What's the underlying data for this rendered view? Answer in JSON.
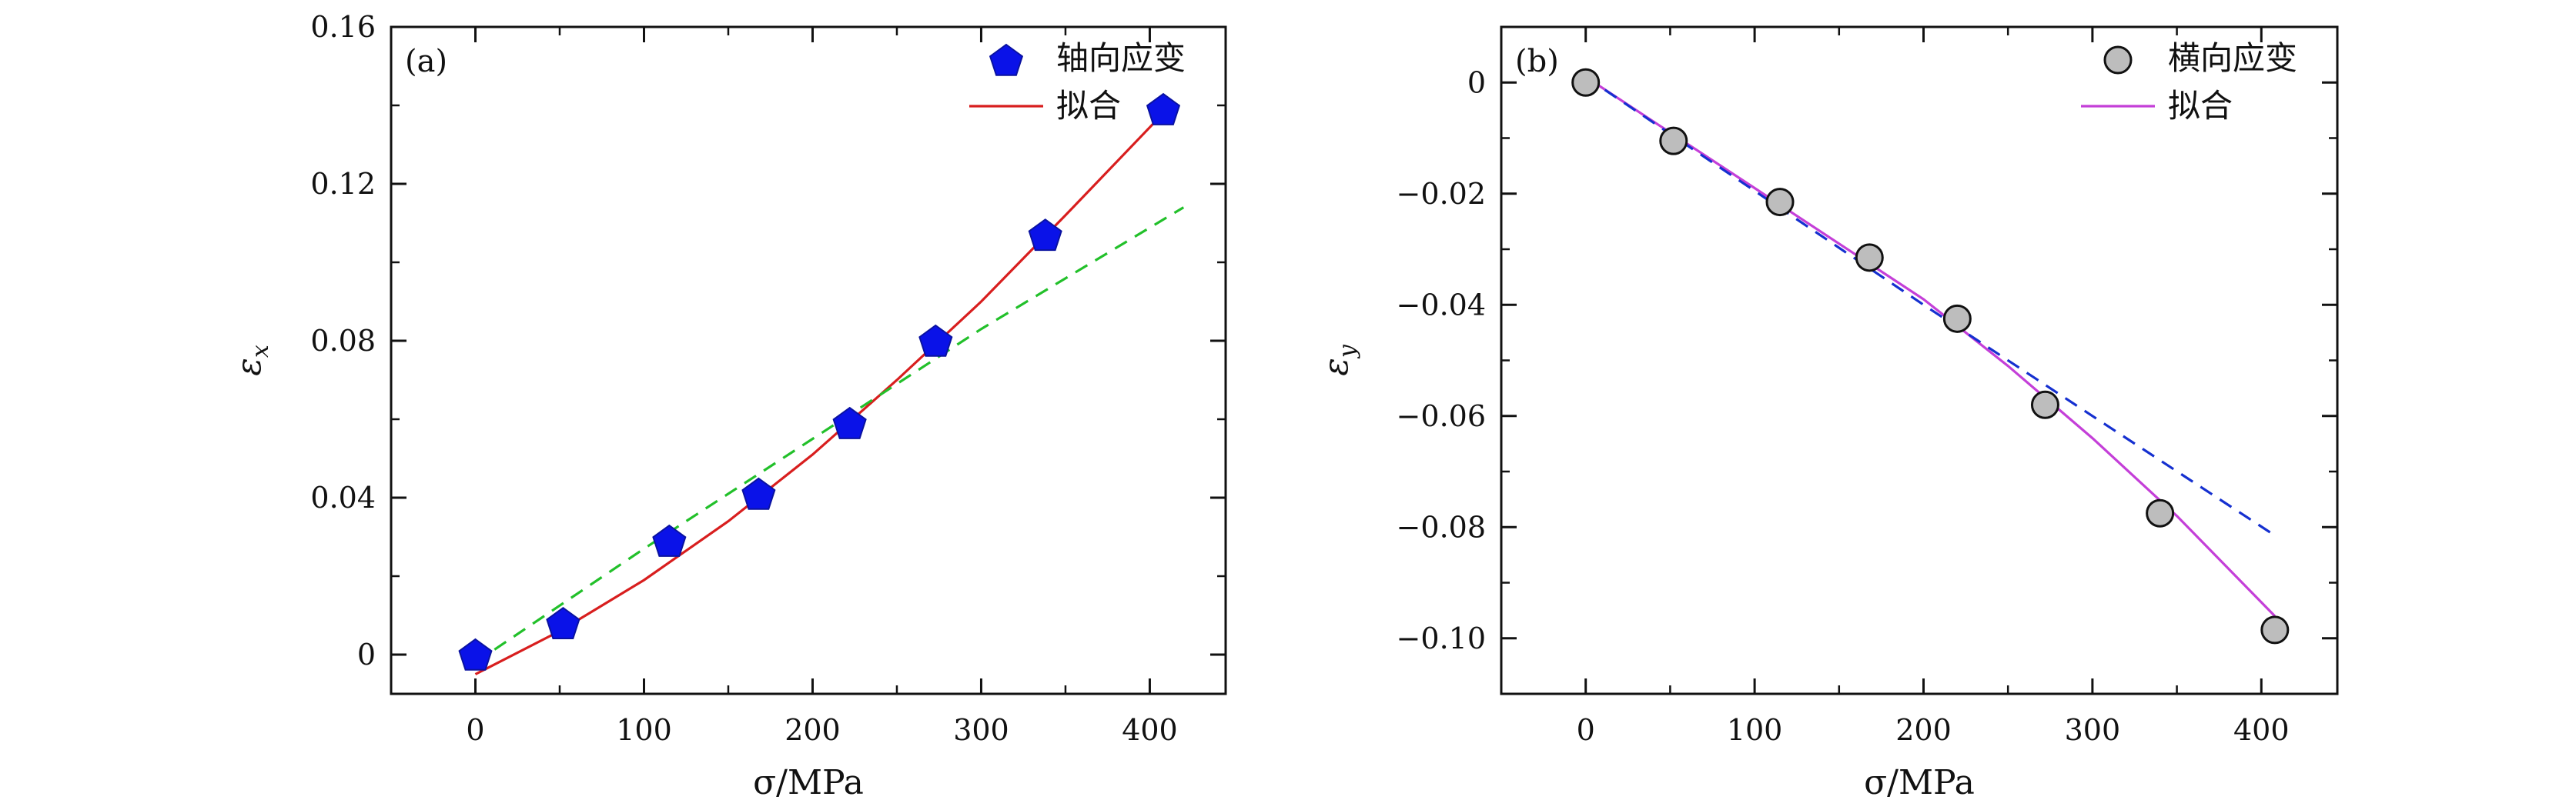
{
  "chart_data": [
    {
      "type": "scatter",
      "panel_label": "(a)",
      "xlabel": "σ/MPa",
      "ylabel": "ε",
      "ylabel_sub": "x",
      "xlim": [
        -50,
        445
      ],
      "ylim": [
        -0.01,
        0.16
      ],
      "x_ticks": [
        0,
        100,
        200,
        300,
        400
      ],
      "x_tick_labels": [
        "0",
        "100",
        "200",
        "300",
        "400"
      ],
      "y_ticks": [
        0,
        0.04,
        0.08,
        0.12,
        0.16
      ],
      "y_tick_labels": [
        "0",
        "0.04",
        "0.08",
        "0.12",
        "0.16"
      ],
      "legend_position": "top-right",
      "series": [
        {
          "name": "轴向应变",
          "kind": "markers",
          "marker": "pentagon",
          "color": "#0a12e8",
          "x": [
            0,
            52,
            115,
            168,
            222,
            273,
            338,
            408
          ],
          "y": [
            0.0,
            0.008,
            0.029,
            0.041,
            0.059,
            0.08,
            0.107,
            0.139
          ]
        },
        {
          "name": "拟合",
          "kind": "line",
          "style": "solid",
          "color": "#d81e1e",
          "x": [
            0,
            50,
            100,
            150,
            200,
            250,
            300,
            350,
            408
          ],
          "y": [
            -0.005,
            0.006,
            0.019,
            0.034,
            0.051,
            0.07,
            0.09,
            0.112,
            0.138
          ]
        },
        {
          "kind": "line",
          "style": "dashed",
          "color": "#22c02a",
          "x": [
            0,
            100,
            200,
            300,
            420
          ],
          "y": [
            -0.002,
            0.027,
            0.055,
            0.083,
            0.114
          ]
        }
      ]
    },
    {
      "type": "scatter",
      "panel_label": "(b)",
      "xlabel": "σ/MPa",
      "ylabel": "ε",
      "ylabel_sub": "y",
      "xlim": [
        -50,
        445
      ],
      "ylim": [
        -0.11,
        0.01
      ],
      "x_ticks": [
        0,
        100,
        200,
        300,
        400
      ],
      "x_tick_labels": [
        "0",
        "100",
        "200",
        "300",
        "400"
      ],
      "y_ticks": [
        0,
        -0.02,
        -0.04,
        -0.06,
        -0.08,
        -0.1
      ],
      "y_tick_labels": [
        "0",
        "−0.02",
        "−0.04",
        "−0.06",
        "−0.08",
        "−0.10"
      ],
      "legend_position": "top-right",
      "series": [
        {
          "name": "横向应变",
          "kind": "markers",
          "marker": "circle",
          "color": "#bdbdbd",
          "x": [
            0,
            52,
            115,
            168,
            220,
            272,
            340,
            408
          ],
          "y": [
            0.0,
            -0.0105,
            -0.0215,
            -0.0315,
            -0.0425,
            -0.058,
            -0.0775,
            -0.0985
          ]
        },
        {
          "name": "拟合",
          "kind": "line",
          "style": "solid",
          "color": "#c43fd8",
          "x": [
            0,
            50,
            100,
            150,
            200,
            250,
            300,
            350,
            408
          ],
          "y": [
            0.001,
            -0.009,
            -0.019,
            -0.029,
            -0.039,
            -0.051,
            -0.064,
            -0.078,
            -0.096
          ]
        },
        {
          "kind": "line",
          "style": "dashed",
          "color": "#1530d0",
          "x": [
            0,
            100,
            200,
            300,
            408
          ],
          "y": [
            0.001,
            -0.0195,
            -0.04,
            -0.06,
            -0.0815
          ]
        }
      ]
    }
  ]
}
